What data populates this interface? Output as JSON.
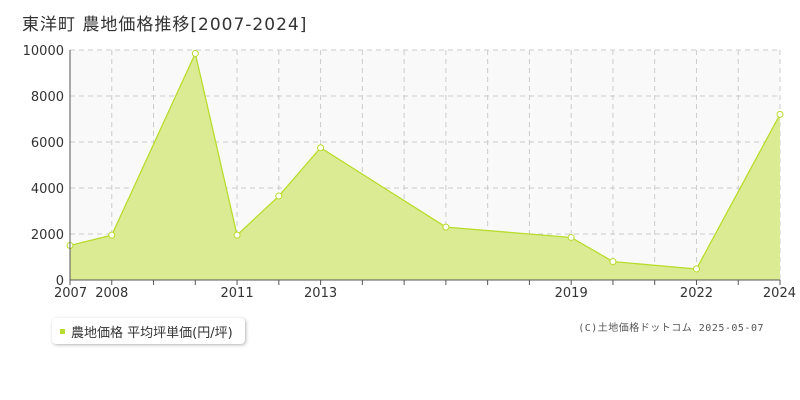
{
  "title": "東洋町 農地価格推移[2007-2024]",
  "legend_label": "農地価格 平均坪単価(円/坪)",
  "credit": "(C)土地価格ドットコム 2025-05-07",
  "colors": {
    "fill": "#dbeb93",
    "line": "#b8dc2e",
    "grid": "#cccccc",
    "plot_bg": "#f9f9fa"
  },
  "chart_data": {
    "type": "area",
    "title": "東洋町 農地価格推移[2007-2024]",
    "x": [
      2007,
      2008,
      2010,
      2011,
      2012,
      2013,
      2016,
      2019,
      2020,
      2022,
      2024
    ],
    "series": [
      {
        "name": "農地価格 平均坪単価(円/坪)",
        "values": [
          1500,
          1950,
          9850,
          1950,
          3650,
          5750,
          2300,
          1850,
          800,
          480,
          7200
        ]
      }
    ],
    "x_tick_labels": [
      "2007",
      "2008",
      "2011",
      "2013",
      "2019",
      "2022",
      "2024"
    ],
    "y_ticks": [
      0,
      2000,
      4000,
      6000,
      8000,
      10000
    ],
    "xlim": [
      2007,
      2024
    ],
    "ylim": [
      0,
      10000
    ],
    "grid": true,
    "legend_position": "bottom-left"
  }
}
